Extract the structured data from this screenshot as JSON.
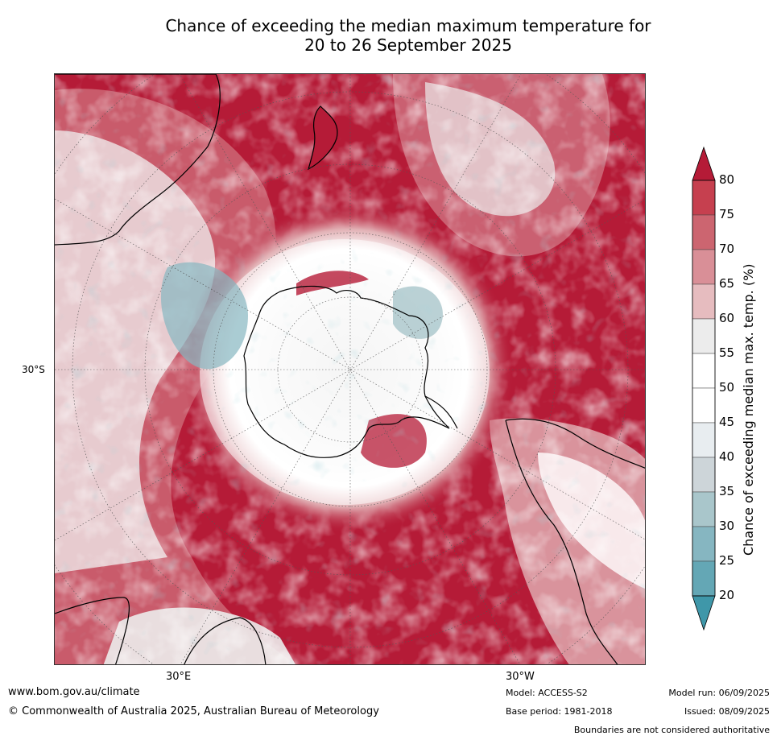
{
  "title_line1": "Chance of exceeding the median maximum temperature for",
  "title_line2": "20 to 26 September 2025",
  "lat_label": "30°S",
  "lon_labels": [
    "30°E",
    "30°W"
  ],
  "colorbar": {
    "label": "Chance of exceeding median max. temp. (%)",
    "ticks": [
      "80",
      "75",
      "70",
      "65",
      "60",
      "55",
      "50",
      "45",
      "40",
      "35",
      "30",
      "25",
      "20"
    ],
    "colors": [
      "#b51b37",
      "#c6404f",
      "#cc6570",
      "#d98f97",
      "#e6bcbf",
      "#ececec",
      "#ffffff",
      "#ffffff",
      "#e8edf0",
      "#cdd5d9",
      "#a9c6cb",
      "#86b6c1",
      "#64a7b5",
      "#3f97a9"
    ]
  },
  "footer": {
    "url": "www.bom.gov.au/climate",
    "copyright": "© Commonwealth of Australia 2025, Australian Bureau of Meteorology",
    "model": "Model: ACCESS-S2",
    "base_period": "Base period: 1981-2018",
    "model_run": "Model run: 06/09/2025",
    "issued": "Issued: 08/09/2025",
    "disclaimer": "Boundaries are not considered authoritative"
  }
}
